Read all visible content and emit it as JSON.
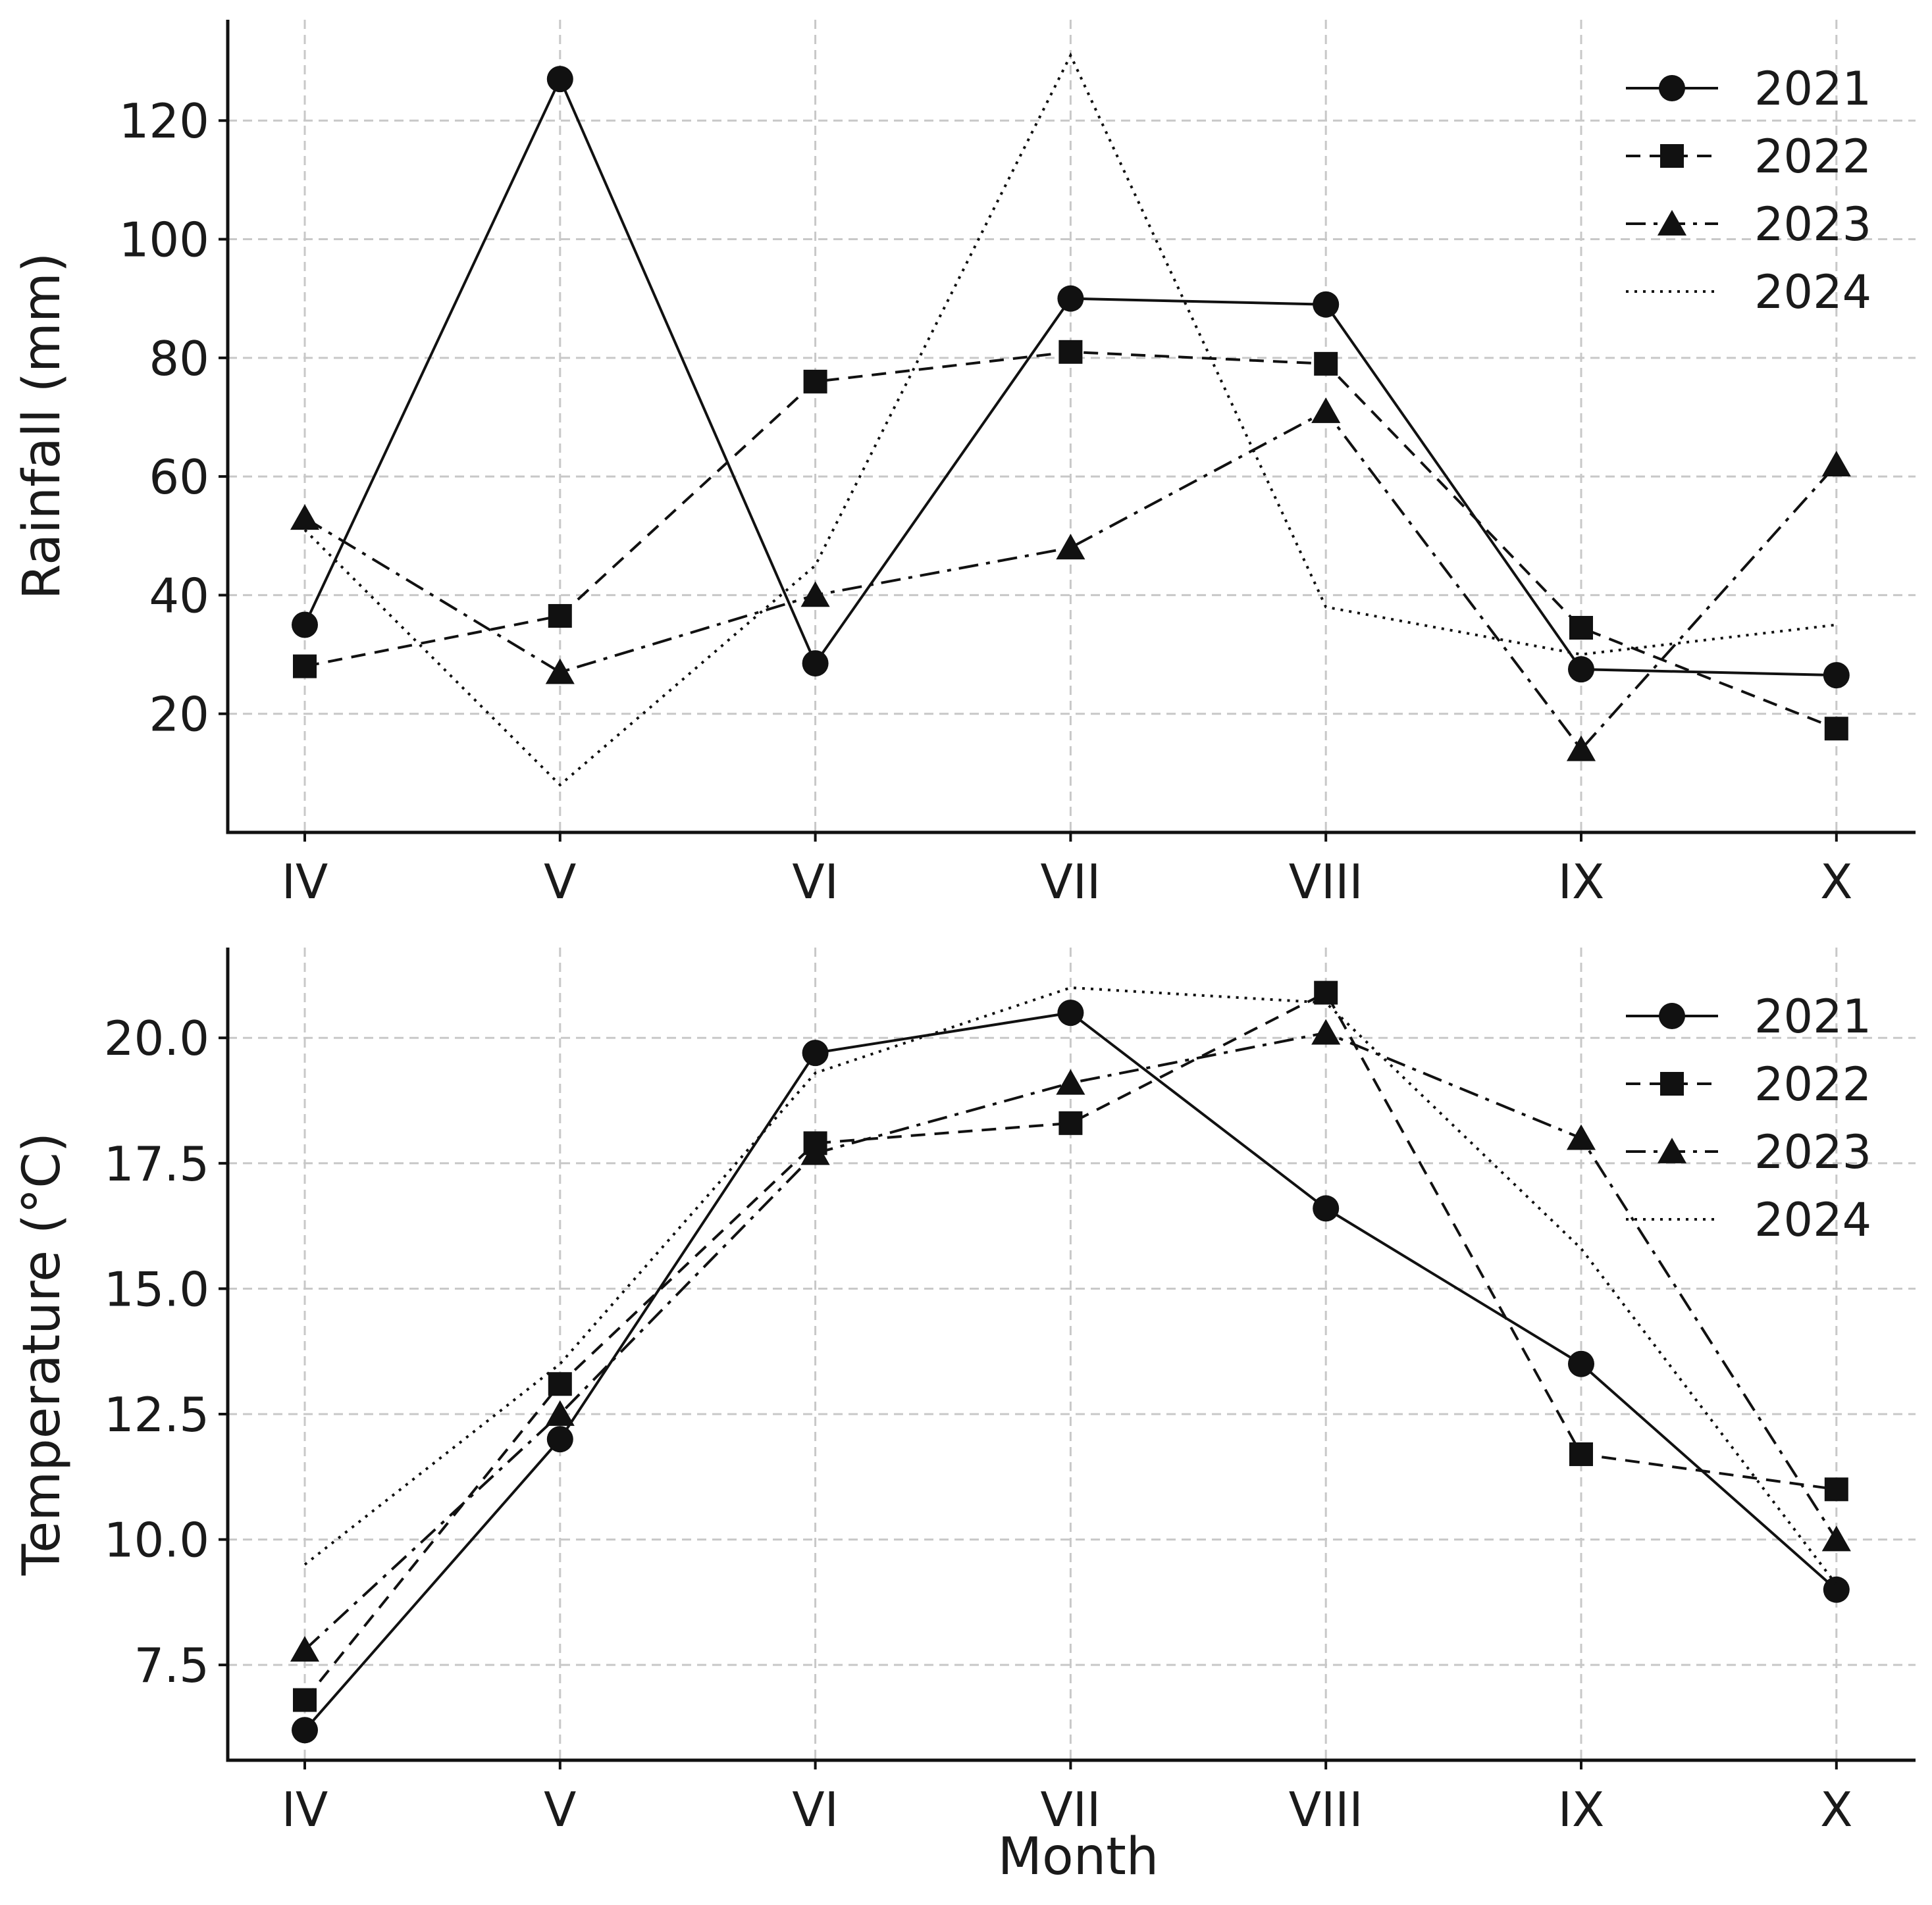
{
  "chart_data": [
    {
      "type": "line",
      "title": "",
      "xlabel": "",
      "ylabel": "Rainfall (mm)",
      "categories": [
        "IV",
        "V",
        "VI",
        "VII",
        "VIII",
        "IX",
        "X"
      ],
      "ylim": [
        0,
        137
      ],
      "yticks": [
        20,
        40,
        60,
        80,
        100,
        120
      ],
      "ytick_labels": [
        "20",
        "40",
        "60",
        "80",
        "100",
        "120"
      ],
      "grid": true,
      "legend_position": "top-right",
      "series": [
        {
          "name": "2021",
          "linestyle": "solid",
          "marker": "circle",
          "values": [
            35,
            127,
            28.5,
            90,
            89,
            27.5,
            26.5
          ]
        },
        {
          "name": "2022",
          "linestyle": "dashed",
          "marker": "square",
          "values": [
            28,
            36.5,
            76,
            81,
            79,
            34.5,
            17.5
          ]
        },
        {
          "name": "2023",
          "linestyle": "dashdot",
          "marker": "triangle",
          "values": [
            53,
            27,
            40,
            48,
            71,
            14,
            62
          ]
        },
        {
          "name": "2024",
          "linestyle": "dotted",
          "marker": "none",
          "values": [
            51,
            8,
            45,
            131,
            38,
            30,
            35
          ]
        }
      ]
    },
    {
      "type": "line",
      "title": "",
      "xlabel": "Month",
      "ylabel": "Temperature (°C)",
      "categories": [
        "IV",
        "V",
        "VI",
        "VII",
        "VIII",
        "IX",
        "X"
      ],
      "ylim": [
        5.6,
        21.8
      ],
      "yticks": [
        7.5,
        10.0,
        12.5,
        15.0,
        17.5,
        20.0
      ],
      "ytick_labels": [
        "7.5",
        "10.0",
        "12.5",
        "15.0",
        "17.5",
        "20.0"
      ],
      "grid": true,
      "legend_position": "top-right",
      "series": [
        {
          "name": "2021",
          "linestyle": "solid",
          "marker": "circle",
          "values": [
            6.2,
            12.0,
            19.7,
            20.5,
            16.6,
            13.5,
            9.0
          ]
        },
        {
          "name": "2022",
          "linestyle": "dashed",
          "marker": "square",
          "values": [
            6.8,
            13.1,
            17.9,
            18.3,
            20.9,
            11.7,
            11.0
          ]
        },
        {
          "name": "2023",
          "linestyle": "dashdot",
          "marker": "triangle",
          "values": [
            7.8,
            12.5,
            17.7,
            19.1,
            20.1,
            18.0,
            10.0
          ]
        },
        {
          "name": "2024",
          "linestyle": "dotted",
          "marker": "none",
          "values": [
            9.5,
            13.5,
            19.3,
            21.0,
            20.7,
            15.8,
            9.1
          ]
        }
      ]
    }
  ]
}
